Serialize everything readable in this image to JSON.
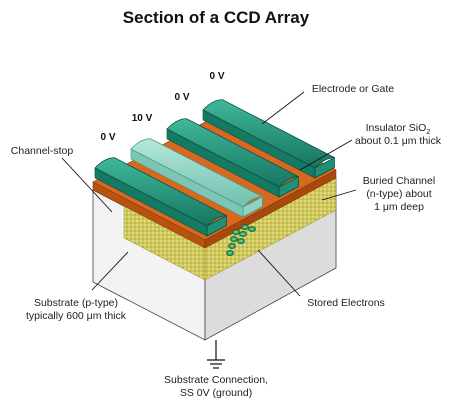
{
  "title": "Section of a CCD Array",
  "voltages": [
    "0 V",
    "10 V",
    "0 V",
    "0 V"
  ],
  "labels": {
    "electrode": "Electrode or Gate",
    "insulator_l1": "Insulator SiO",
    "insulator_sub": "2",
    "insulator_l2": "about 0.1 μm thick",
    "buried_l1": "Buried Channel",
    "buried_l2": "(n-type) about",
    "buried_l3": "1 μm deep",
    "channel_stop": "Channel-stop",
    "substrate_l1": "Substrate (p-type)",
    "substrate_l2": "typically 600 μm thick",
    "stored": "Stored Electrons",
    "connection_l1": "Substrate Connection,",
    "connection_l2": "SS 0V (ground)"
  },
  "colors": {
    "electrode": "#1f8f77",
    "electrode_active": "#8ed3c2",
    "insulator": "#d6681f",
    "buried": "#cfc85a",
    "substrate_front": "#f3f3f3",
    "substrate_side": "#dcdcdc",
    "electron": "#2a9a5c"
  },
  "electrons": [
    {
      "row": 0,
      "col": 0
    },
    {
      "row": 0,
      "col": 1
    },
    {
      "row": 1,
      "col": 0
    },
    {
      "row": 1,
      "col": 1
    },
    {
      "row": 1,
      "col": 2
    },
    {
      "row": 2,
      "col": 0
    },
    {
      "row": 2,
      "col": 1
    },
    {
      "row": 3,
      "col": 0
    }
  ]
}
